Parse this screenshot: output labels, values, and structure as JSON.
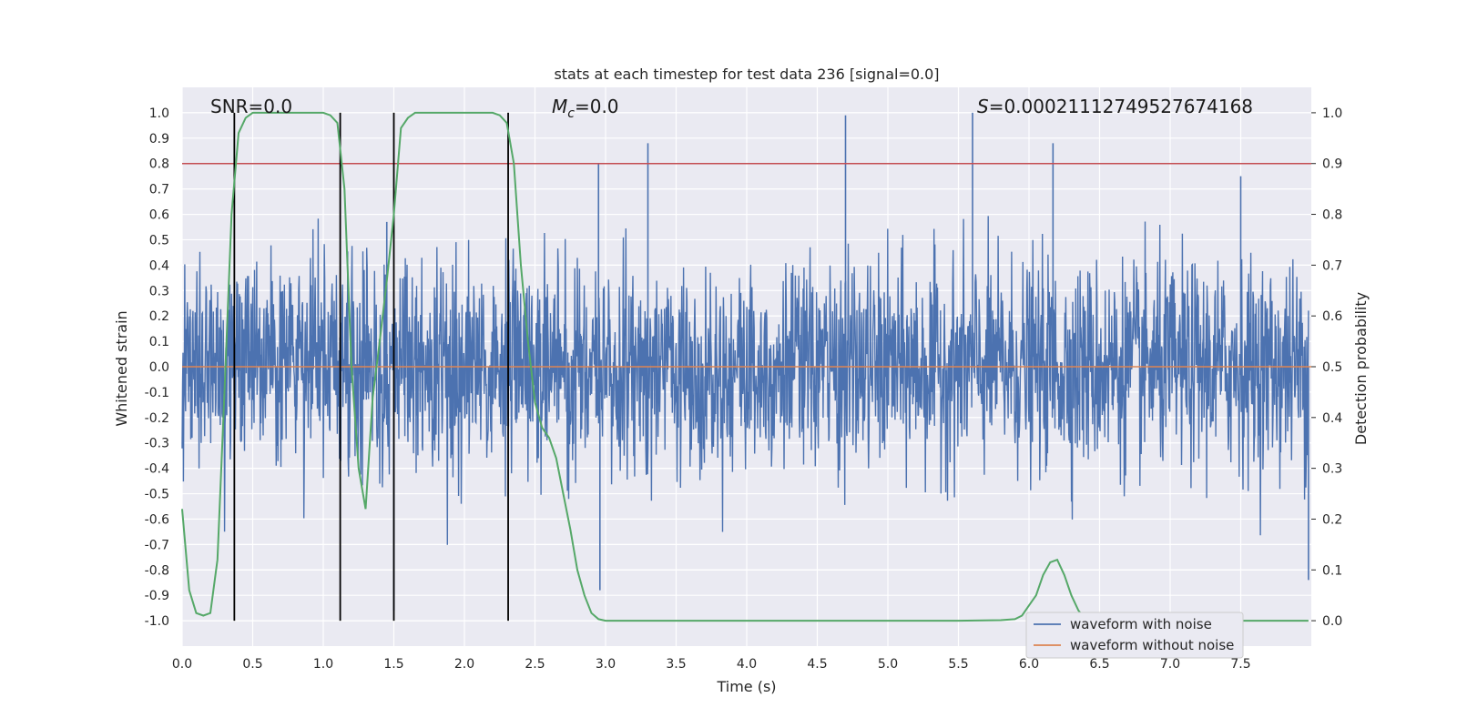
{
  "chart_data": {
    "type": "line",
    "title": "stats at each timestep for test data 236 [signal=0.0]",
    "xlabel": "Time (s)",
    "ylabel": "Whitened strain",
    "y2label": "Detection probability",
    "xlim": [
      0.0,
      8.0
    ],
    "ylim": [
      -1.1,
      1.1
    ],
    "y2lim": [
      -0.05,
      1.05
    ],
    "x_ticks": [
      0.0,
      0.5,
      1.0,
      1.5,
      2.0,
      2.5,
      3.0,
      3.5,
      4.0,
      4.5,
      5.0,
      5.5,
      6.0,
      6.5,
      7.0,
      7.5
    ],
    "x_tick_labels": [
      "0.0",
      "0.5",
      "1.0",
      "1.5",
      "2.0",
      "2.5",
      "3.0",
      "3.5",
      "4.0",
      "4.5",
      "5.0",
      "5.5",
      "6.0",
      "6.5",
      "7.0",
      "7.5"
    ],
    "y_ticks": [
      1.0,
      0.9,
      0.8,
      0.7,
      0.6,
      0.5,
      0.4,
      0.3,
      0.2,
      0.1,
      0.0,
      -0.1,
      -0.2,
      -0.3,
      -0.4,
      -0.5,
      -0.6,
      -0.7,
      -0.8,
      -0.9,
      -1.0
    ],
    "y_tick_labels": [
      "1.0",
      "0.9",
      "0.8",
      "0.7",
      "0.6",
      "0.5",
      "0.4",
      "0.3",
      "0.2",
      "0.1",
      "0.0",
      "-0.1",
      "-0.2",
      "-0.3",
      "-0.4",
      "-0.5",
      "-0.6",
      "-0.7",
      "-0.8",
      "-0.9",
      "-1.0"
    ],
    "y2_ticks": [
      1.0,
      0.9,
      0.8,
      0.7,
      0.6,
      0.5,
      0.4,
      0.3,
      0.2,
      0.1,
      0.0
    ],
    "y2_tick_labels": [
      "1.0",
      "0.9",
      "0.8",
      "0.7",
      "0.6",
      "0.5",
      "0.4",
      "0.3",
      "0.2",
      "0.1",
      "0.0"
    ],
    "grid": true,
    "annotations": {
      "snr": "SNR=0.0",
      "mc": "Mc=0.0",
      "s": "S=0.00021112749527674168"
    },
    "threshold_line": {
      "axis": "y2",
      "value": 0.9,
      "color": "#c44e52"
    },
    "vertical_markers_x": [
      0.37,
      1.12,
      1.5,
      2.31
    ],
    "series": [
      {
        "name": "waveform with noise",
        "color": "#4c72b0",
        "axis": "y",
        "description_note": "dense whitened noise, envelope approx +/-0.5 with spikes to +/-1.0",
        "spike_x": [
          4.7,
          5.6,
          6.17,
          3.3,
          2.95,
          1.5,
          2.96,
          7.5,
          1.45,
          7.98
        ],
        "spike_y": [
          0.99,
          1.0,
          0.88,
          0.88,
          0.8,
          -0.96,
          -0.88,
          0.75,
          0.57,
          -0.84
        ]
      },
      {
        "name": "waveform without noise",
        "color": "#dd8452",
        "axis": "y",
        "x": [
          0.0,
          8.0
        ],
        "y": [
          0.0,
          0.0
        ]
      },
      {
        "name": "detection probability",
        "color": "#55a868",
        "axis": "y2",
        "x": [
          0.0,
          0.05,
          0.1,
          0.15,
          0.2,
          0.25,
          0.3,
          0.35,
          0.4,
          0.45,
          0.5,
          0.55,
          0.6,
          0.7,
          0.8,
          0.9,
          1.0,
          1.05,
          1.1,
          1.15,
          1.2,
          1.25,
          1.3,
          1.35,
          1.4,
          1.45,
          1.5,
          1.55,
          1.6,
          1.65,
          1.7,
          1.8,
          1.9,
          2.0,
          2.1,
          2.2,
          2.25,
          2.3,
          2.35,
          2.4,
          2.45,
          2.5,
          2.55,
          2.6,
          2.65,
          2.7,
          2.75,
          2.8,
          2.85,
          2.9,
          2.95,
          3.0,
          3.5,
          4.0,
          4.5,
          5.0,
          5.5,
          5.8,
          5.9,
          5.95,
          6.0,
          6.05,
          6.1,
          6.15,
          6.2,
          6.25,
          6.3,
          6.35,
          6.4,
          6.5,
          6.6,
          7.0,
          7.5,
          7.98
        ],
        "y": [
          0.22,
          0.06,
          0.015,
          0.01,
          0.015,
          0.12,
          0.45,
          0.8,
          0.96,
          0.99,
          1.0,
          1.0,
          1.0,
          1.0,
          1.0,
          1.0,
          1.0,
          0.995,
          0.98,
          0.85,
          0.5,
          0.3,
          0.22,
          0.44,
          0.55,
          0.67,
          0.8,
          0.97,
          0.99,
          1.0,
          1.0,
          1.0,
          1.0,
          1.0,
          1.0,
          1.0,
          0.995,
          0.98,
          0.9,
          0.7,
          0.55,
          0.43,
          0.38,
          0.36,
          0.32,
          0.25,
          0.18,
          0.1,
          0.05,
          0.015,
          0.003,
          0.0,
          0.0,
          0.0,
          0.0,
          0.0,
          0.0,
          0.001,
          0.003,
          0.01,
          0.03,
          0.05,
          0.09,
          0.115,
          0.12,
          0.09,
          0.05,
          0.02,
          0.003,
          0.0,
          0.0,
          0.0,
          0.0,
          0.0
        ]
      }
    ],
    "legend": {
      "placement": "bottom-right",
      "entries": [
        {
          "label": "waveform with noise",
          "color": "#4c72b0"
        },
        {
          "label": "waveform without noise",
          "color": "#dd8452"
        }
      ]
    }
  }
}
